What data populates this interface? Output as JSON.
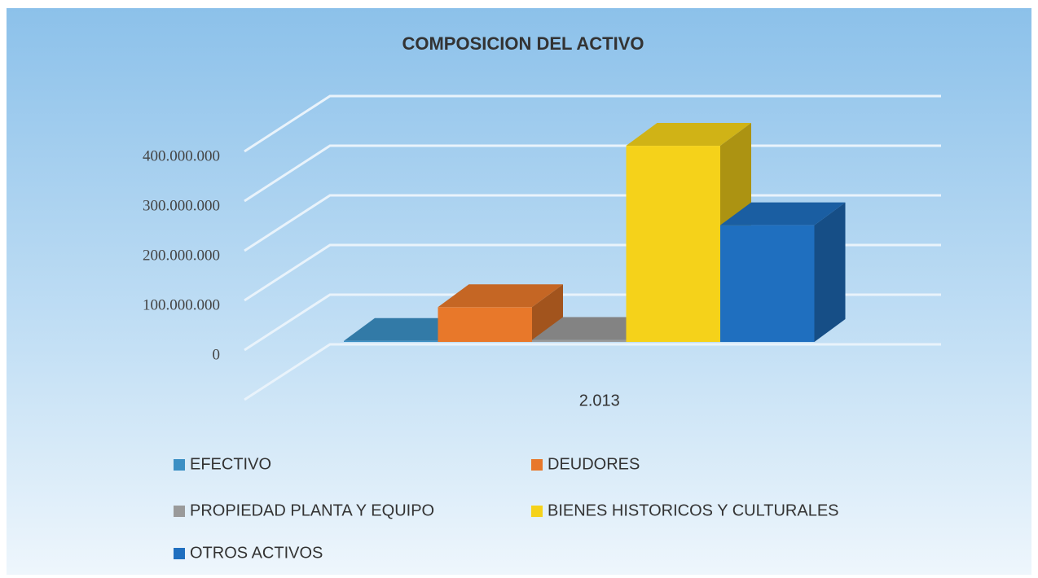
{
  "chart_data": {
    "type": "bar3d",
    "title": "COMPOSICION DEL ACTIVO",
    "categories": [
      "2.013"
    ],
    "series": [
      {
        "name": "EFECTIVO",
        "color": "#3b8fc4",
        "values": [
          2000000
        ]
      },
      {
        "name": "DEUDORES",
        "color": "#e8782a",
        "values": [
          70000000
        ]
      },
      {
        "name": "PROPIEDAD PLANTA Y EQUIPO",
        "color": "#9a9a9a",
        "values": [
          4000000
        ]
      },
      {
        "name": "BIENES HISTORICOS Y CULTURALES",
        "color": "#f5d21a",
        "values": [
          395000000
        ]
      },
      {
        "name": "OTROS ACTIVOS",
        "color": "#1f6fbf",
        "values": [
          235000000
        ]
      }
    ],
    "ylim": [
      0,
      500000000
    ],
    "yticks": [
      0,
      {
        "value": 100000000,
        "label": "100.000.000"
      },
      {
        "value": 200000000,
        "label": "200.000.000"
      },
      {
        "value": 300000000,
        "label": "300.000.000"
      },
      {
        "value": 400000000,
        "label": "400.000.000"
      }
    ],
    "grid": true,
    "legend": "bottom"
  }
}
